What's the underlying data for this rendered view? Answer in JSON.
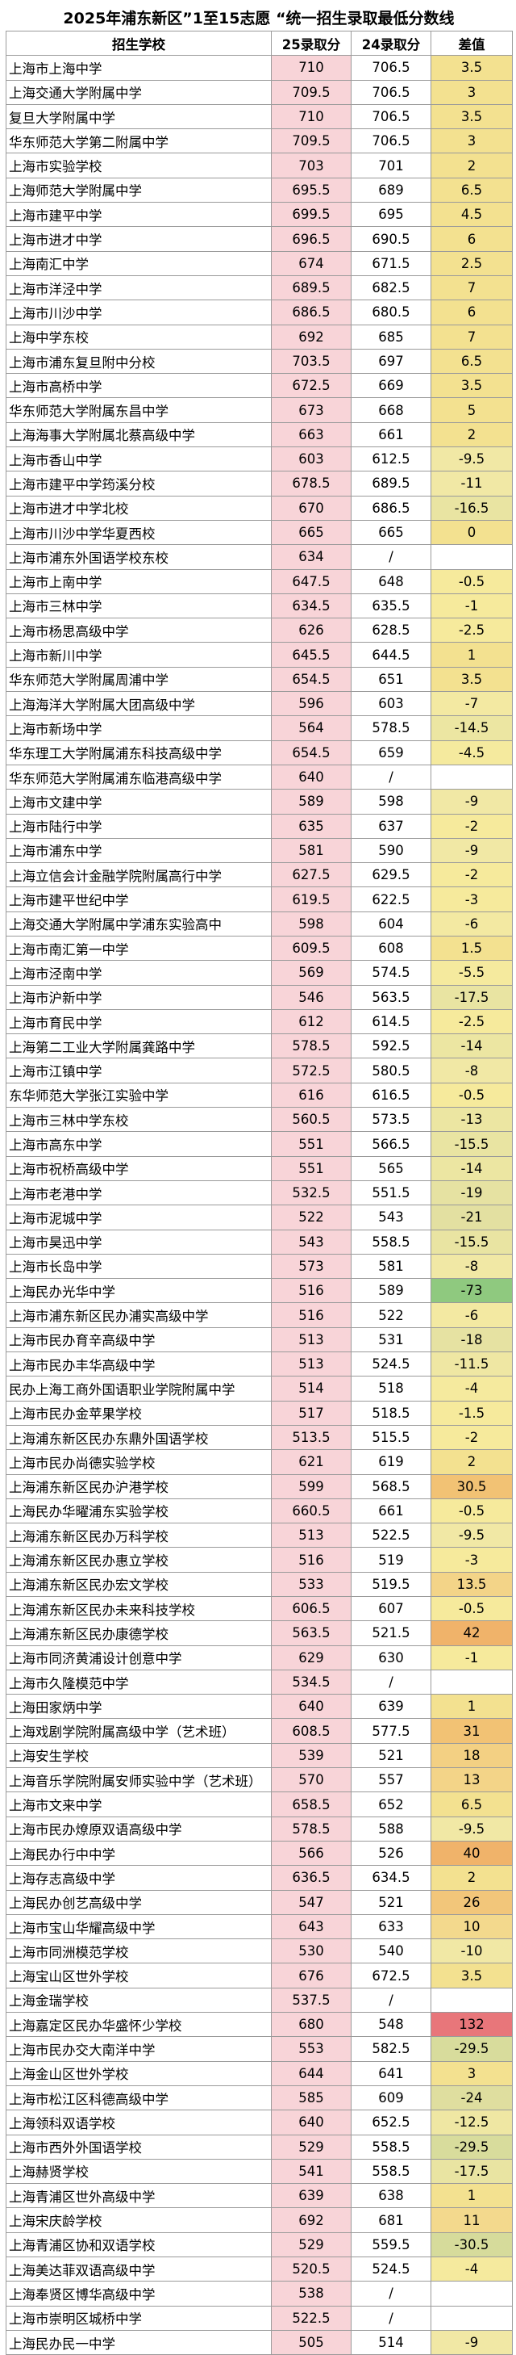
{
  "title": "2025年浦东新区”1至15志愿 “统一招生录取最低分数线",
  "headers": {
    "school": "招生学校",
    "score25": "25录取分",
    "score24": "24录取分",
    "diff": "差值"
  },
  "colors": {
    "score25_bg": "#f8d4d8",
    "diff_pos_high": "#e8767a",
    "diff_neg_high": "#8fc97f",
    "diff_mid": "#f6e9a3"
  },
  "rows": [
    {
      "school": "上海市上海中学",
      "s25": "710",
      "s24": "706.5",
      "diff": "3.5",
      "bg": "#f3e190"
    },
    {
      "school": "上海交通大学附属中学",
      "s25": "709.5",
      "s24": "706.5",
      "diff": "3",
      "bg": "#f3e190"
    },
    {
      "school": "复旦大学附属中学",
      "s25": "710",
      "s24": "706.5",
      "diff": "3.5",
      "bg": "#f3e190"
    },
    {
      "school": "华东师范大学第二附属中学",
      "s25": "709.5",
      "s24": "706.5",
      "diff": "3",
      "bg": "#f3e190"
    },
    {
      "school": "上海市实验学校",
      "s25": "703",
      "s24": "701",
      "diff": "2",
      "bg": "#f3e190"
    },
    {
      "school": "上海师范大学附属中学",
      "s25": "695.5",
      "s24": "689",
      "diff": "6.5",
      "bg": "#f3e190"
    },
    {
      "school": "上海市建平中学",
      "s25": "699.5",
      "s24": "695",
      "diff": "4.5",
      "bg": "#f3e190"
    },
    {
      "school": "上海市进才中学",
      "s25": "696.5",
      "s24": "690.5",
      "diff": "6",
      "bg": "#f3e190"
    },
    {
      "school": "上海南汇中学",
      "s25": "674",
      "s24": "671.5",
      "diff": "2.5",
      "bg": "#f3e190"
    },
    {
      "school": "上海市洋泾中学",
      "s25": "689.5",
      "s24": "682.5",
      "diff": "7",
      "bg": "#f3e190"
    },
    {
      "school": "上海市川沙中学",
      "s25": "686.5",
      "s24": "680.5",
      "diff": "6",
      "bg": "#f3e190"
    },
    {
      "school": "上海中学东校",
      "s25": "692",
      "s24": "685",
      "diff": "7",
      "bg": "#f3e190"
    },
    {
      "school": "上海市浦东复旦附中分校",
      "s25": "703.5",
      "s24": "697",
      "diff": "6.5",
      "bg": "#f3e190"
    },
    {
      "school": "上海市高桥中学",
      "s25": "672.5",
      "s24": "669",
      "diff": "3.5",
      "bg": "#f3e190"
    },
    {
      "school": "华东师范大学附属东昌中学",
      "s25": "673",
      "s24": "668",
      "diff": "5",
      "bg": "#f3e190"
    },
    {
      "school": "上海海事大学附属北蔡高级中学",
      "s25": "663",
      "s24": "661",
      "diff": "2",
      "bg": "#f3e190"
    },
    {
      "school": "上海市香山中学",
      "s25": "603",
      "s24": "612.5",
      "diff": "-9.5",
      "bg": "#f1e8a5"
    },
    {
      "school": "上海市建平中学筠溪分校",
      "s25": "678.5",
      "s24": "689.5",
      "diff": "-11",
      "bg": "#f1e8a5"
    },
    {
      "school": "上海市进才中学北校",
      "s25": "670",
      "s24": "686.5",
      "diff": "-16.5",
      "bg": "#e9e4a2"
    },
    {
      "school": "上海市川沙中学华夏西校",
      "s25": "665",
      "s24": "665",
      "diff": "0",
      "bg": "#f3e190"
    },
    {
      "school": "上海市浦东外国语学校东校",
      "s25": "634",
      "s24": "/",
      "diff": "",
      "bg": "#ffffff"
    },
    {
      "school": "上海市上南中学",
      "s25": "647.5",
      "s24": "648",
      "diff": "-0.5",
      "bg": "#f6ea9c"
    },
    {
      "school": "上海市三林中学",
      "s25": "634.5",
      "s24": "635.5",
      "diff": "-1",
      "bg": "#f6ea9c"
    },
    {
      "school": "上海市杨思高级中学",
      "s25": "626",
      "s24": "628.5",
      "diff": "-2.5",
      "bg": "#f6ea9c"
    },
    {
      "school": "上海市新川中学",
      "s25": "645.5",
      "s24": "644.5",
      "diff": "1",
      "bg": "#f3e190"
    },
    {
      "school": "华东师范大学附属周浦中学",
      "s25": "654.5",
      "s24": "651",
      "diff": "3.5",
      "bg": "#f3e190"
    },
    {
      "school": "上海海洋大学附属大团高级中学",
      "s25": "596",
      "s24": "603",
      "diff": "-7",
      "bg": "#f3e9a2"
    },
    {
      "school": "上海市新场中学",
      "s25": "564",
      "s24": "578.5",
      "diff": "-14.5",
      "bg": "#ece6a2"
    },
    {
      "school": "华东理工大学附属浦东科技高级中学",
      "s25": "654.5",
      "s24": "659",
      "diff": "-4.5",
      "bg": "#f5ea9e"
    },
    {
      "school": "华东师范大学附属浦东临港高级中学",
      "s25": "640",
      "s24": "/",
      "diff": "",
      "bg": "#ffffff"
    },
    {
      "school": "上海市文建中学",
      "s25": "589",
      "s24": "598",
      "diff": "-9",
      "bg": "#f1e8a5"
    },
    {
      "school": "上海市陆行中学",
      "s25": "635",
      "s24": "637",
      "diff": "-2",
      "bg": "#f6ea9c"
    },
    {
      "school": "上海市浦东中学",
      "s25": "581",
      "s24": "590",
      "diff": "-9",
      "bg": "#f1e8a5"
    },
    {
      "school": "上海立信会计金融学院附属高行中学",
      "s25": "627.5",
      "s24": "629.5",
      "diff": "-2",
      "bg": "#f6ea9c"
    },
    {
      "school": "上海市建平世纪中学",
      "s25": "619.5",
      "s24": "622.5",
      "diff": "-3",
      "bg": "#f6ea9c"
    },
    {
      "school": "上海交通大学附属中学浦东实验高中",
      "s25": "598",
      "s24": "604",
      "diff": "-6",
      "bg": "#f3e9a2"
    },
    {
      "school": "上海市南汇第一中学",
      "s25": "609.5",
      "s24": "608",
      "diff": "1.5",
      "bg": "#f3e190"
    },
    {
      "school": "上海市泾南中学",
      "s25": "569",
      "s24": "574.5",
      "diff": "-5.5",
      "bg": "#f5ea9e"
    },
    {
      "school": "上海市沪新中学",
      "s25": "546",
      "s24": "563.5",
      "diff": "-17.5",
      "bg": "#e9e4a2"
    },
    {
      "school": "上海市育民中学",
      "s25": "612",
      "s24": "614.5",
      "diff": "-2.5",
      "bg": "#f6ea9c"
    },
    {
      "school": "上海第二工业大学附属龚路中学",
      "s25": "578.5",
      "s24": "592.5",
      "diff": "-14",
      "bg": "#ece6a2"
    },
    {
      "school": "上海市江镇中学",
      "s25": "572.5",
      "s24": "580.5",
      "diff": "-8",
      "bg": "#f1e8a5"
    },
    {
      "school": "东华师范大学张江实验中学",
      "s25": "616",
      "s24": "616.5",
      "diff": "-0.5",
      "bg": "#f6ea9c"
    },
    {
      "school": "上海市三林中学东校",
      "s25": "560.5",
      "s24": "573.5",
      "diff": "-13",
      "bg": "#ece6a2"
    },
    {
      "school": "上海市高东中学",
      "s25": "551",
      "s24": "566.5",
      "diff": "-15.5",
      "bg": "#e9e4a2"
    },
    {
      "school": "上海市祝桥高级中学",
      "s25": "551",
      "s24": "565",
      "diff": "-14",
      "bg": "#ece6a2"
    },
    {
      "school": "上海市老港中学",
      "s25": "532.5",
      "s24": "551.5",
      "diff": "-19",
      "bg": "#e6e2a2"
    },
    {
      "school": "上海市泥城中学",
      "s25": "522",
      "s24": "543",
      "diff": "-21",
      "bg": "#e3e0a1"
    },
    {
      "school": "上海市昊迅中学",
      "s25": "543",
      "s24": "558.5",
      "diff": "-15.5",
      "bg": "#e9e4a2"
    },
    {
      "school": "上海市长岛中学",
      "s25": "573",
      "s24": "581",
      "diff": "-8",
      "bg": "#f1e8a5"
    },
    {
      "school": "上海民办光华中学",
      "s25": "516",
      "s24": "589",
      "diff": "-73",
      "bg": "#8fc97f"
    },
    {
      "school": "上海市浦东新区民办浦实高级中学",
      "s25": "516",
      "s24": "522",
      "diff": "-6",
      "bg": "#f3e9a2"
    },
    {
      "school": "上海市民办育辛高级中学",
      "s25": "513",
      "s24": "531",
      "diff": "-18",
      "bg": "#e6e2a2"
    },
    {
      "school": "上海市民办丰华高级中学",
      "s25": "513",
      "s24": "524.5",
      "diff": "-11.5",
      "bg": "#efe7a3"
    },
    {
      "school": "民办上海工商外国语职业学院附属中学",
      "s25": "514",
      "s24": "518",
      "diff": "-4",
      "bg": "#f5ea9e"
    },
    {
      "school": "上海市民办金苹果学校",
      "s25": "517",
      "s24": "518.5",
      "diff": "-1.5",
      "bg": "#f6ea9c"
    },
    {
      "school": "上海浦东新区民办东鼎外国语学校",
      "s25": "513.5",
      "s24": "515.5",
      "diff": "-2",
      "bg": "#f6ea9c"
    },
    {
      "school": "上海市民办尚德实验学校",
      "s25": "621",
      "s24": "619",
      "diff": "2",
      "bg": "#f3e190"
    },
    {
      "school": "上海浦东新区民办沪港学校",
      "s25": "599",
      "s24": "568.5",
      "diff": "30.5",
      "bg": "#f2c274"
    },
    {
      "school": "上海民办华曜浦东实验学校",
      "s25": "660.5",
      "s24": "661",
      "diff": "-0.5",
      "bg": "#f6ea9c"
    },
    {
      "school": "上海浦东新区民办万科学校",
      "s25": "513",
      "s24": "522.5",
      "diff": "-9.5",
      "bg": "#f1e8a5"
    },
    {
      "school": "上海浦东新区民办惠立学校",
      "s25": "516",
      "s24": "519",
      "diff": "-3",
      "bg": "#f6ea9c"
    },
    {
      "school": "上海浦东新区民办宏文学校",
      "s25": "533",
      "s24": "519.5",
      "diff": "13.5",
      "bg": "#f3d488"
    },
    {
      "school": "上海浦东新区民办未来科技学校",
      "s25": "606.5",
      "s24": "607",
      "diff": "-0.5",
      "bg": "#f6ea9c"
    },
    {
      "school": "上海浦东新区民办康德学校",
      "s25": "563.5",
      "s24": "521.5",
      "diff": "42",
      "bg": "#f0b36a"
    },
    {
      "school": "上海市同济黄浦设计创意中学",
      "s25": "629",
      "s24": "630",
      "diff": "-1",
      "bg": "#f6ea9c"
    },
    {
      "school": "上海市久隆模范中学",
      "s25": "534.5",
      "s24": "/",
      "diff": "",
      "bg": "#ffffff"
    },
    {
      "school": "上海田家炳中学",
      "s25": "640",
      "s24": "639",
      "diff": "1",
      "bg": "#f3e190"
    },
    {
      "school": "上海戏剧学院附属高级中学（艺术班）",
      "s25": "608.5",
      "s24": "577.5",
      "diff": "31",
      "bg": "#f2c274"
    },
    {
      "school": "上海安生学校",
      "s25": "539",
      "s24": "521",
      "diff": "18",
      "bg": "#f3d083"
    },
    {
      "school": "上海音乐学院附属安师实验中学（艺术班）",
      "s25": "570",
      "s24": "557",
      "diff": "13",
      "bg": "#f3d488"
    },
    {
      "school": "上海市文来中学",
      "s25": "658.5",
      "s24": "652",
      "diff": "6.5",
      "bg": "#f3e190"
    },
    {
      "school": "上海市民办燎原双语高级中学",
      "s25": "578.5",
      "s24": "588",
      "diff": "-9.5",
      "bg": "#f1e8a5"
    },
    {
      "school": "上海民办行中中学",
      "s25": "566",
      "s24": "526",
      "diff": "40",
      "bg": "#f0b36a"
    },
    {
      "school": "上海存志高级中学",
      "s25": "636.5",
      "s24": "634.5",
      "diff": "2",
      "bg": "#f3e190"
    },
    {
      "school": "上海民办创艺高级中学",
      "s25": "547",
      "s24": "521",
      "diff": "26",
      "bg": "#f2c67a"
    },
    {
      "school": "上海市宝山华耀高级中学",
      "s25": "643",
      "s24": "633",
      "diff": "10",
      "bg": "#f3d98d"
    },
    {
      "school": "上海市同洲模范学校",
      "s25": "530",
      "s24": "540",
      "diff": "-10",
      "bg": "#f1e8a5"
    },
    {
      "school": "上海宝山区世外学校",
      "s25": "676",
      "s24": "672.5",
      "diff": "3.5",
      "bg": "#f3e190"
    },
    {
      "school": "上海金瑞学校",
      "s25": "537.5",
      "s24": "/",
      "diff": "",
      "bg": "#ffffff"
    },
    {
      "school": "上海嘉定区民办华盛怀少学校",
      "s25": "680",
      "s24": "548",
      "diff": "132",
      "bg": "#e8767a"
    },
    {
      "school": "上海市民办交大南洋中学",
      "s25": "553",
      "s24": "582.5",
      "diff": "-29.5",
      "bg": "#d8dc9c"
    },
    {
      "school": "上海金山区世外学校",
      "s25": "644",
      "s24": "641",
      "diff": "3",
      "bg": "#f3e190"
    },
    {
      "school": "上海市松江区科德高级中学",
      "s25": "585",
      "s24": "609",
      "diff": "-24",
      "bg": "#dfde9f"
    },
    {
      "school": "上海领科双语学校",
      "s25": "640",
      "s24": "652.5",
      "diff": "-12.5",
      "bg": "#efe7a3"
    },
    {
      "school": "上海市西外外国语学校",
      "s25": "529",
      "s24": "558.5",
      "diff": "-29.5",
      "bg": "#d8dc9c"
    },
    {
      "school": "上海赫贤学校",
      "s25": "541",
      "s24": "558.5",
      "diff": "-17.5",
      "bg": "#e9e4a2"
    },
    {
      "school": "上海青浦区世外高级中学",
      "s25": "639",
      "s24": "638",
      "diff": "1",
      "bg": "#f3e190"
    },
    {
      "school": "上海宋庆龄学校",
      "s25": "692",
      "s24": "681",
      "diff": "11",
      "bg": "#f3d98d"
    },
    {
      "school": "上海青浦区协和双语学校",
      "s25": "529",
      "s24": "559.5",
      "diff": "-30.5",
      "bg": "#d6db9b"
    },
    {
      "school": "上海美达菲双语高级中学",
      "s25": "520.5",
      "s24": "524.5",
      "diff": "-4",
      "bg": "#f5ea9e"
    },
    {
      "school": "上海奉贤区博华高级中学",
      "s25": "538",
      "s24": "/",
      "diff": "",
      "bg": "#ffffff"
    },
    {
      "school": "上海市崇明区城桥中学",
      "s25": "522.5",
      "s24": "/",
      "diff": "",
      "bg": "#ffffff"
    },
    {
      "school": "上海民办民一中学",
      "s25": "505",
      "s24": "514",
      "diff": "-9",
      "bg": "#f1e8a5"
    }
  ]
}
